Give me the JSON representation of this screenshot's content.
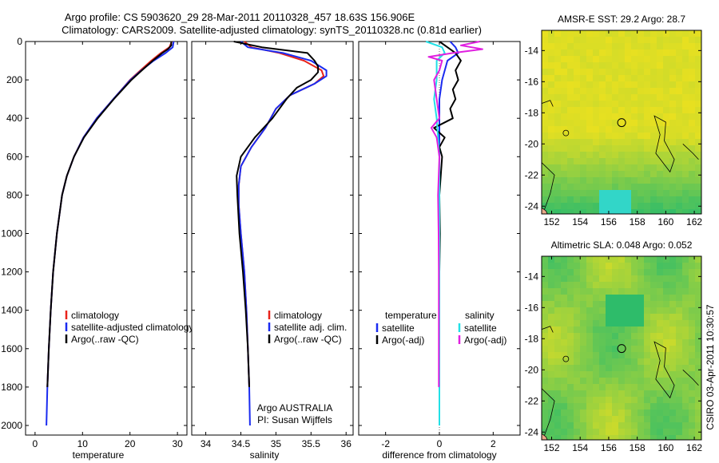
{
  "header": {
    "title_line1": "Argo profile: CS 5903620_29 28-Mar-2011 20110328_457 18.63S 156.906E",
    "title_line2": "Climatology: CARS2009. Satellite-adjusted climatology: synTS_20110328.nc (0.81d earlier)"
  },
  "side_label": "CSIRO 03-Apr-2011 10:30:57",
  "colors": {
    "climatology": "#e8231b",
    "satellite": "#1a2bf0",
    "argo": "#000000",
    "diff_sat_sal": "#22e0e6",
    "diff_argo_sal": "#e020e0",
    "map_warm": "#e8e020",
    "map_cool": "#2ebc6a",
    "land": "#e8a888"
  },
  "chart_data": [
    {
      "type": "line",
      "name": "temperature-panel",
      "xlabel": "temperature",
      "ylabel": "",
      "xlim": [
        -2,
        32
      ],
      "ylim": [
        0,
        2050
      ],
      "y_inverted": true,
      "xticks": [
        0,
        10,
        20,
        30
      ],
      "yticks": [
        0,
        200,
        400,
        600,
        800,
        1000,
        1200,
        1400,
        1600,
        1800,
        2000
      ],
      "legend": {
        "position": "lower-right",
        "entries": [
          "climatology",
          "satellite-adjusted climatology",
          "Argo(..raw -QC)"
        ]
      },
      "series": [
        {
          "name": "climatology",
          "color_key": "climatology",
          "depth": [
            0,
            30,
            60,
            100,
            150,
            200,
            300,
            400,
            500,
            600,
            700,
            800,
            1000,
            1200,
            1400,
            1600,
            1800
          ],
          "values": [
            28.8,
            28.3,
            26.5,
            24.5,
            22.2,
            20.0,
            16.5,
            13.0,
            10.2,
            8.2,
            6.7,
            5.7,
            4.6,
            3.8,
            3.3,
            2.9,
            2.6
          ]
        },
        {
          "name": "satellite-adjusted climatology",
          "color_key": "satellite",
          "depth": [
            0,
            30,
            60,
            100,
            150,
            200,
            300,
            400,
            500,
            600,
            700,
            800,
            1000,
            1200,
            1400,
            1600,
            1800,
            2000
          ],
          "values": [
            29.2,
            29.0,
            27.5,
            25.0,
            22.4,
            20.1,
            16.5,
            13.0,
            10.2,
            8.2,
            6.7,
            5.7,
            4.6,
            3.8,
            3.3,
            2.9,
            2.6,
            2.4
          ]
        },
        {
          "name": "Argo(..raw -QC)",
          "color_key": "argo",
          "depth": [
            0,
            20,
            40,
            60,
            80,
            100,
            150,
            200,
            300,
            400,
            500,
            600,
            700,
            800,
            1000,
            1200,
            1400,
            1600,
            1800
          ],
          "values": [
            28.7,
            28.7,
            28.0,
            26.8,
            25.8,
            24.8,
            22.5,
            20.3,
            16.6,
            13.2,
            10.3,
            8.2,
            6.7,
            5.7,
            4.6,
            3.8,
            3.3,
            2.9,
            2.6
          ]
        }
      ]
    },
    {
      "type": "line",
      "name": "salinity-panel",
      "xlabel": "salinity",
      "ylabel": "",
      "xlim": [
        33.8,
        36.1
      ],
      "ylim": [
        0,
        2050
      ],
      "y_inverted": true,
      "xticks": [
        34,
        34.5,
        35,
        35.5,
        36
      ],
      "legend": {
        "position": "lower-right",
        "entries": [
          "climatology",
          "satellite adj. clim.",
          "Argo(..raw -QC)"
        ]
      },
      "annotation_lines": [
        "Argo AUSTRALIA",
        "PI: Susan Wijffels"
      ],
      "series": [
        {
          "name": "climatology",
          "color_key": "climatology",
          "depth": [
            0,
            30,
            60,
            100,
            150,
            180,
            220,
            280,
            350,
            450,
            550,
            650,
            750,
            850,
            1000,
            1200,
            1400,
            1600,
            1800
          ],
          "values": [
            34.55,
            34.65,
            35.05,
            35.4,
            35.65,
            35.68,
            35.55,
            35.2,
            35.0,
            34.85,
            34.65,
            34.5,
            34.47,
            34.47,
            34.5,
            34.55,
            34.58,
            34.6,
            34.62
          ]
        },
        {
          "name": "satellite adj. clim.",
          "color_key": "satellite",
          "depth": [
            0,
            30,
            60,
            100,
            150,
            180,
            220,
            280,
            350,
            450,
            550,
            650,
            750,
            850,
            1000,
            1200,
            1400,
            1600,
            1800,
            2000
          ],
          "values": [
            34.5,
            34.6,
            35.1,
            35.5,
            35.72,
            35.72,
            35.55,
            35.2,
            35.0,
            34.85,
            34.65,
            34.5,
            34.47,
            34.47,
            34.5,
            34.55,
            34.58,
            34.6,
            34.62,
            34.63
          ]
        },
        {
          "name": "Argo(..raw -QC)",
          "color_key": "argo",
          "depth": [
            0,
            30,
            60,
            100,
            130,
            160,
            200,
            240,
            300,
            400,
            500,
            600,
            700,
            800,
            1000,
            1200,
            1400,
            1600,
            1800
          ],
          "values": [
            34.4,
            34.8,
            35.45,
            35.55,
            35.6,
            35.6,
            35.5,
            35.3,
            35.15,
            34.95,
            34.7,
            34.5,
            34.44,
            34.45,
            34.48,
            34.53,
            34.57,
            34.6,
            34.62
          ]
        }
      ]
    },
    {
      "type": "line",
      "name": "difference-panel",
      "xlabel": "difference from climatology",
      "ylabel": "",
      "xlim": [
        -3,
        3
      ],
      "ylim": [
        0,
        2050
      ],
      "y_inverted": true,
      "xticks": [
        -2,
        0,
        2
      ],
      "legend": {
        "position": "lower-right",
        "groups": [
          {
            "heading": "temperature",
            "entries": [
              "satellite",
              "Argo(-adj)"
            ]
          },
          {
            "heading": "salinity",
            "entries": [
              "satellite",
              "Argo(-adj)"
            ]
          }
        ]
      },
      "series": [
        {
          "name": "temperature satellite",
          "color_key": "satellite",
          "depth": [
            0,
            30,
            60,
            100,
            200,
            300,
            400,
            600,
            800,
            1000,
            1200,
            1400,
            1600,
            2000
          ],
          "values": [
            0.4,
            0.6,
            0.7,
            0.3,
            0.1,
            0.0,
            0.0,
            0.0,
            0.0,
            0.0,
            0.0,
            0.0,
            0.0,
            0.0
          ]
        },
        {
          "name": "temperature Argo(-adj)",
          "color_key": "argo",
          "depth": [
            0,
            30,
            60,
            100,
            150,
            200,
            250,
            300,
            350,
            400,
            450,
            500,
            550,
            600,
            700,
            800,
            1000,
            1200,
            1400,
            1600,
            1800
          ],
          "values": [
            0.0,
            0.3,
            0.6,
            0.8,
            0.6,
            0.7,
            0.5,
            0.6,
            0.4,
            0.5,
            -0.2,
            0.2,
            0.0,
            0.1,
            0.05,
            0.0,
            0.02,
            0.0,
            0.0,
            0.0,
            0.0
          ]
        },
        {
          "name": "salinity satellite",
          "color_key": "diff_sat_sal",
          "depth": [
            0,
            30,
            60,
            100,
            200,
            300,
            400,
            500,
            600,
            800,
            1000,
            1200,
            1400,
            1600,
            1800,
            2000
          ],
          "values": [
            -0.5,
            0.1,
            0.2,
            -0.1,
            -0.1,
            -0.2,
            -0.1,
            -0.05,
            0.0,
            0.0,
            0.0,
            0.0,
            0.0,
            0.0,
            0.0,
            0.0
          ]
        },
        {
          "name": "salinity Argo(-adj)",
          "color_key": "diff_argo_sal",
          "depth": [
            0,
            20,
            40,
            60,
            80,
            100,
            150,
            200,
            300,
            400,
            450,
            500,
            600,
            800,
            1000,
            1200,
            1400,
            1600,
            1800
          ],
          "values": [
            1.5,
            0.8,
            1.6,
            0.5,
            -0.4,
            0.1,
            0.0,
            -0.2,
            -0.1,
            0.0,
            -0.3,
            -0.1,
            0.0,
            -0.05,
            -0.03,
            -0.02,
            -0.02,
            -0.02,
            -0.02
          ]
        }
      ]
    },
    {
      "type": "heatmap",
      "name": "sst-map",
      "title": "AMSR-E SST: 29.2 Argo: 28.7",
      "xlim": [
        151.3,
        162.5
      ],
      "ylim": [
        -24.5,
        -12.7
      ],
      "xticks": [
        152,
        154,
        156,
        158,
        160,
        162
      ],
      "yticks": [
        -14,
        -16,
        -18,
        -20,
        -22,
        -24
      ],
      "profile_marker": [
        156.906,
        -18.63
      ]
    },
    {
      "type": "heatmap",
      "name": "sla-map",
      "title": "Altimetric SLA: 0.048 Argo: 0.052",
      "xlim": [
        151.3,
        162.5
      ],
      "ylim": [
        -24.5,
        -12.7
      ],
      "xticks": [
        152,
        154,
        156,
        158,
        160,
        162
      ],
      "yticks": [
        -14,
        -16,
        -18,
        -20,
        -22,
        -24
      ],
      "profile_marker": [
        156.906,
        -18.63
      ]
    }
  ]
}
